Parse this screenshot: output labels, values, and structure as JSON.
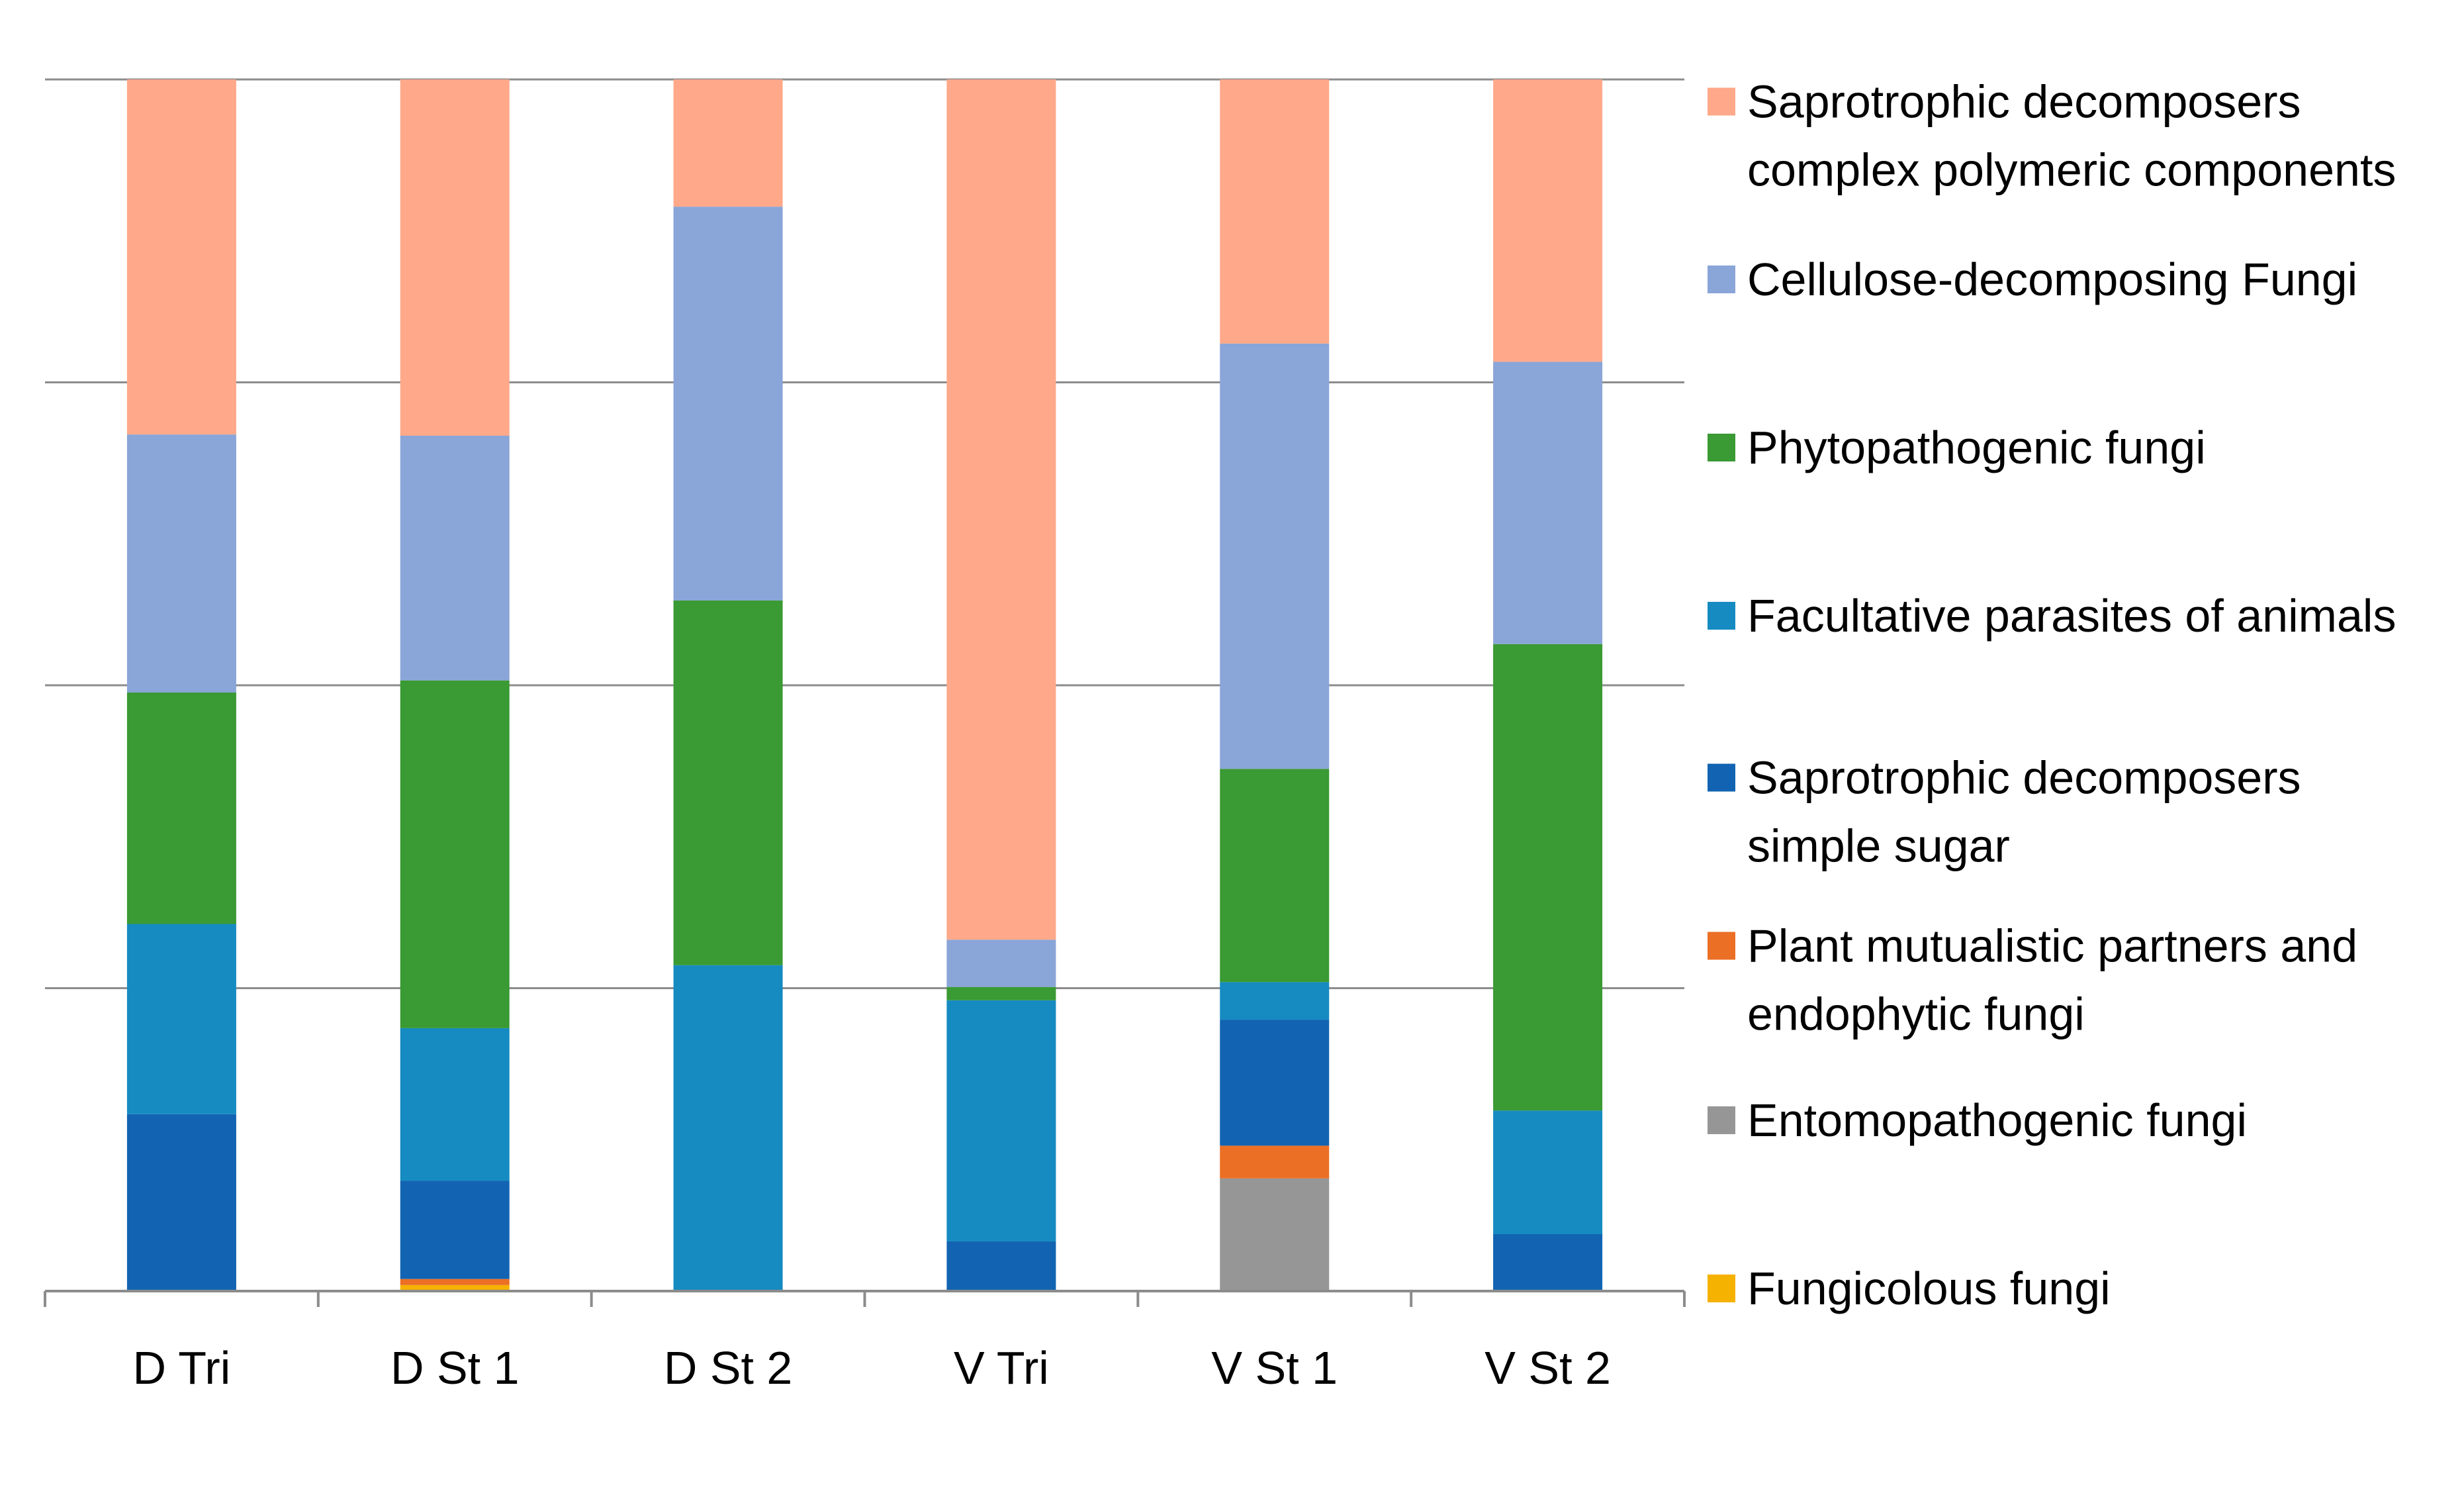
{
  "chart_data": {
    "type": "bar",
    "stacked": true,
    "percent_stacked": true,
    "title": "",
    "xlabel": "",
    "ylabel": "",
    "ylim": [
      0,
      100
    ],
    "gridlines": true,
    "legend_position": "right",
    "categories": [
      "D Tri",
      "D St 1",
      "D St 2",
      "V Tri",
      "V St 1",
      "V St 2"
    ],
    "series": [
      {
        "name": "Fungicolous fungi",
        "label_lines": [
          "Fungicolous fungi"
        ],
        "color": "#F5B200",
        "values": [
          0,
          0.5,
          0,
          0,
          0,
          0
        ]
      },
      {
        "name": "Entomopathogenic fungi",
        "label_lines": [
          "Entomopathogenic fungi"
        ],
        "color": "#969696",
        "values": [
          0,
          0,
          0,
          0,
          9.3,
          0
        ]
      },
      {
        "name": "Plant mutualistic partners and endophytic fungi",
        "label_lines": [
          "Plant mutualistic partners and",
          "endophytic fungi"
        ],
        "color": "#EB6F25",
        "values": [
          0,
          0.5,
          0,
          0,
          2.7,
          0
        ]
      },
      {
        "name": "Saprotrophic decomposers simple sugar",
        "label_lines": [
          "Saprotrophic decomposers",
          "simple sugar"
        ],
        "color": "#1264B2",
        "values": [
          14.6,
          8.1,
          0,
          4.1,
          10.4,
          4.7
        ]
      },
      {
        "name": "Facultative parasites of animals",
        "label_lines": [
          "Facultative parasites of animals"
        ],
        "color": "#168BC1",
        "values": [
          15.7,
          12.6,
          26.9,
          19.9,
          3.1,
          10.2
        ]
      },
      {
        "name": "Phytopathogenic fungi",
        "label_lines": [
          "Phytopathogenic fungi"
        ],
        "color": "#3A9A33",
        "values": [
          19.1,
          28.7,
          30.1,
          1.1,
          17.6,
          38.5
        ]
      },
      {
        "name": "Cellulose-decomposing Fungi",
        "label_lines": [
          "Cellulose-decomposing Fungi"
        ],
        "color": "#8AA5D8",
        "values": [
          21.3,
          20.2,
          32.5,
          3.9,
          35.1,
          23.3
        ]
      },
      {
        "name": "Saprotrophic decomposers complex polymeric components",
        "label_lines": [
          "Saprotrophic decomposers",
          "complex polymeric components"
        ],
        "color": "#FFA98A",
        "values": [
          29.3,
          29.4,
          10.5,
          71.0,
          21.8,
          23.3
        ]
      }
    ]
  }
}
